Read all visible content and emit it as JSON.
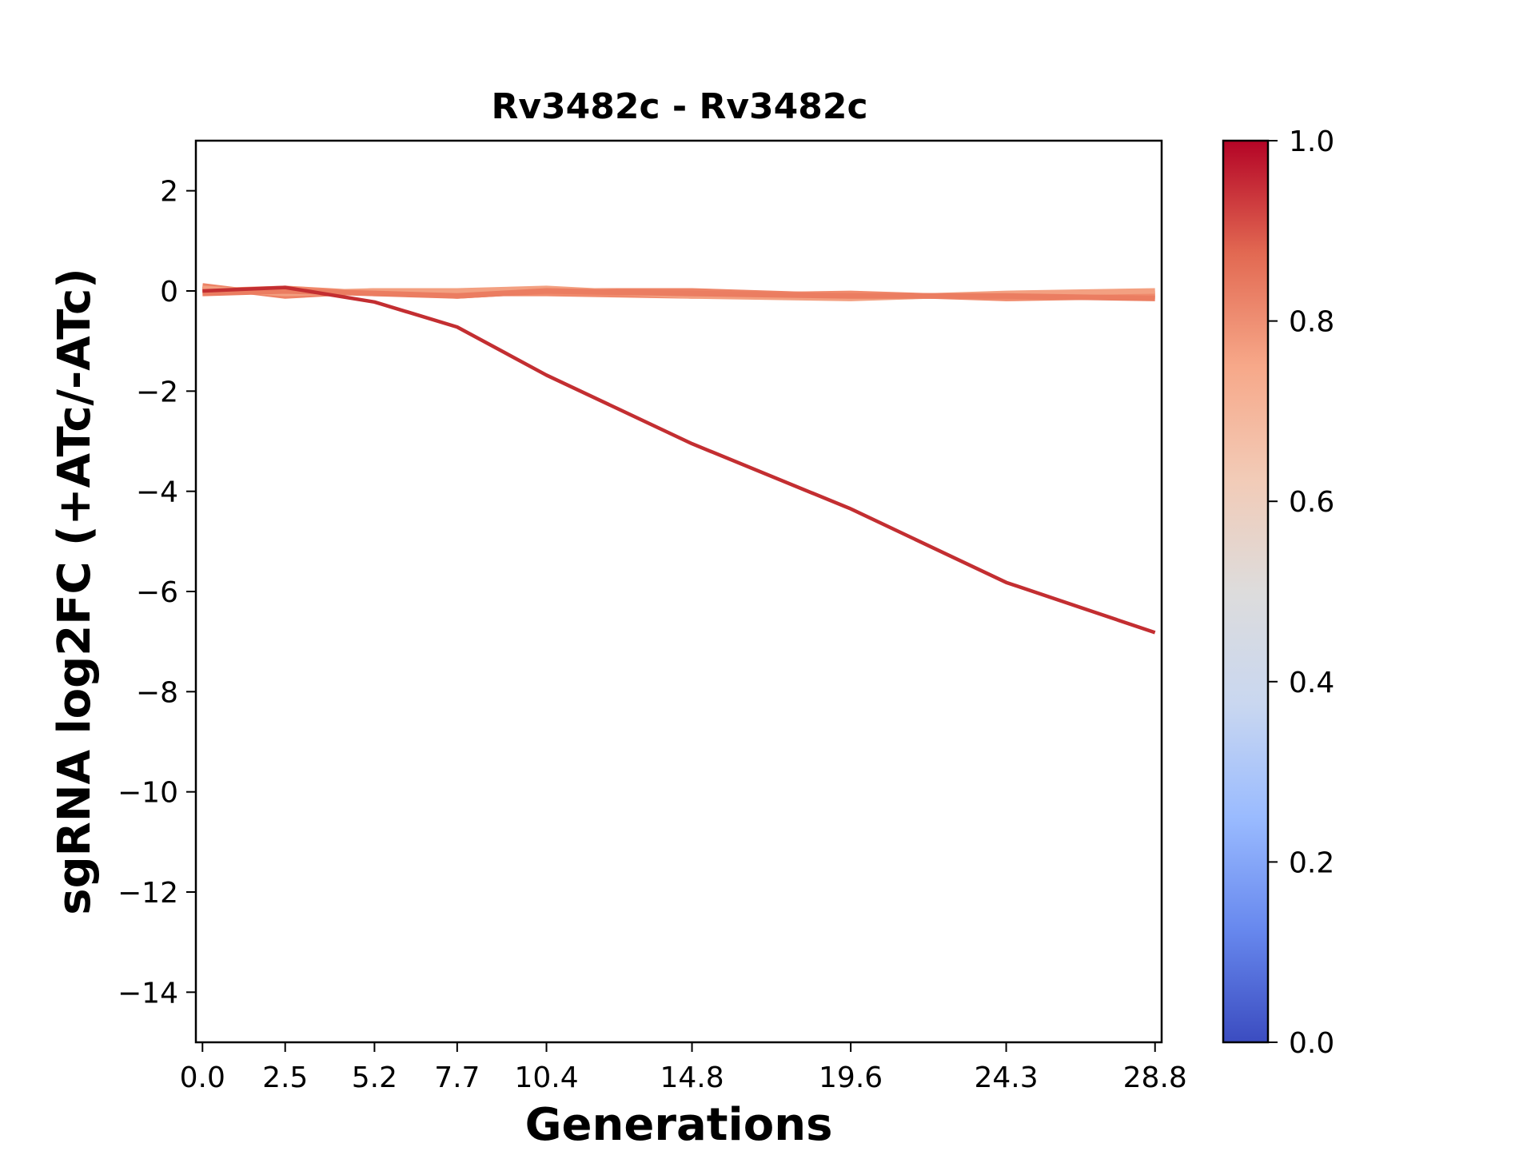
{
  "chart_data": {
    "type": "line",
    "title": "Rv3482c - Rv3482c",
    "xlabel": "Generations",
    "ylabel": "sgRNA log2FC (+ATc/-ATc)",
    "x": [
      0.0,
      2.5,
      5.2,
      7.7,
      10.4,
      14.8,
      19.6,
      24.3,
      28.8
    ],
    "x_tick_labels": [
      "0.0",
      "2.5",
      "5.2",
      "7.7",
      "10.4",
      "14.8",
      "19.6",
      "24.3",
      "28.8"
    ],
    "y_ticks": [
      2,
      0,
      -2,
      -4,
      -6,
      -8,
      -10,
      -12,
      -14
    ],
    "y_tick_labels": [
      "2",
      "0",
      "−2",
      "−4",
      "−6",
      "−8",
      "−10",
      "−12",
      "−14"
    ],
    "xlim": [
      -0.2,
      29.0
    ],
    "ylim": [
      -15,
      3
    ],
    "grid": false,
    "series": [
      {
        "color": "#ed8366",
        "values": [
          0.1,
          -0.1,
          0.0,
          -0.1,
          0.0,
          0.0,
          -0.1,
          -0.1,
          -0.05
        ]
      },
      {
        "color": "#f08a6c",
        "values": [
          0.0,
          0.05,
          -0.05,
          -0.05,
          -0.05,
          -0.1,
          -0.05,
          -0.15,
          -0.1
        ]
      },
      {
        "color": "#f3a081",
        "values": [
          0.05,
          -0.05,
          0.0,
          0.0,
          0.05,
          -0.1,
          -0.15,
          -0.05,
          0.0
        ]
      },
      {
        "color": "#eb7d61",
        "values": [
          -0.05,
          0.0,
          -0.05,
          -0.1,
          0.0,
          -0.05,
          -0.1,
          -0.1,
          -0.15
        ]
      },
      {
        "color": "#c32e31",
        "values": [
          0.0,
          0.07,
          -0.22,
          -0.72,
          -1.68,
          -3.05,
          -4.35,
          -5.82,
          -6.82
        ]
      }
    ],
    "colorbar": {
      "ticks": [
        1.0,
        0.8,
        0.6,
        0.4,
        0.2,
        0.0
      ],
      "tick_labels": [
        "1.0",
        "0.8",
        "0.6",
        "0.4",
        "0.2",
        "0.0"
      ],
      "colormap": "coolwarm",
      "stops": [
        "#3b4cc0",
        "#6788ee",
        "#9abbff",
        "#c9d7f0",
        "#dddcdc",
        "#f2cbb7",
        "#f7a889",
        "#e26952",
        "#b40426"
      ]
    }
  }
}
